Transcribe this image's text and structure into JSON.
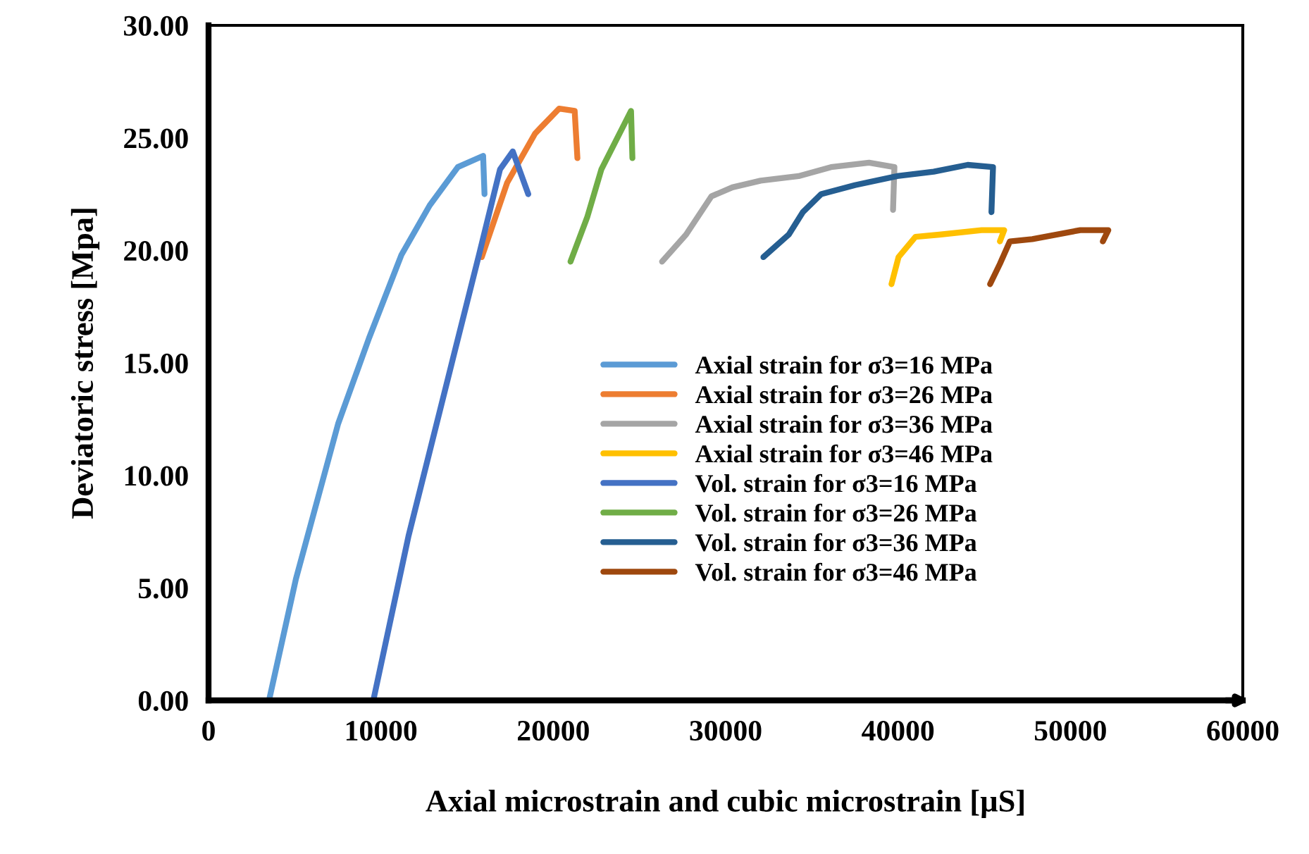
{
  "chart_data": {
    "type": "line",
    "xlabel": "Axial microstrain and cubic microstrain [µS]",
    "ylabel": "Deviatoric stress [Mpa]",
    "xlim": [
      0,
      60000
    ],
    "xticks": [
      0,
      10000,
      20000,
      30000,
      40000,
      50000,
      60000
    ],
    "ylim": [
      0,
      30
    ],
    "yticks": [
      {
        "value": 0,
        "label": "0.00"
      },
      {
        "value": 5,
        "label": "5.00"
      },
      {
        "value": 10,
        "label": "10.00"
      },
      {
        "value": 15,
        "label": "15.00"
      },
      {
        "value": 20,
        "label": "20.00"
      },
      {
        "value": 25,
        "label": "25.00"
      },
      {
        "value": 30,
        "label": "30.00"
      }
    ],
    "grid": false,
    "legend": "center",
    "marker": "none",
    "line_style": "solid",
    "series": [
      {
        "name": "Axial strain for σ3=16 MPa",
        "color": "#5b9bd5",
        "x": [
          3510,
          5070,
          7520,
          9310,
          11190,
          12830,
          14460,
          15930,
          16010
        ],
        "values": [
          0,
          5.4,
          12.3,
          16.1,
          19.8,
          22.0,
          23.7,
          24.2,
          22.5
        ]
      },
      {
        "name": "Axial strain for σ3=26 MPa",
        "color": "#ed7d31",
        "x": [
          15850,
          17320,
          18950,
          20340,
          21240,
          21400
        ],
        "values": [
          19.7,
          23.0,
          25.2,
          26.3,
          26.2,
          24.1
        ]
      },
      {
        "name": "Axial strain for σ3=36 MPa",
        "color": "#a5a5a5",
        "x": [
          26310,
          27700,
          29170,
          30390,
          32030,
          34230,
          36110,
          38320,
          39790,
          39710
        ],
        "values": [
          19.5,
          20.7,
          22.4,
          22.8,
          23.1,
          23.3,
          23.7,
          23.9,
          23.7,
          21.8
        ]
      },
      {
        "name": "Axial strain for σ3=46 MPa",
        "color": "#ffc000",
        "x": [
          39620,
          40030,
          41010,
          42400,
          44850,
          46160,
          45910
        ],
        "values": [
          18.5,
          19.7,
          20.6,
          20.7,
          20.9,
          20.9,
          20.4
        ]
      },
      {
        "name": "Vol. strain for σ3=16 MPa",
        "color": "#4472c4",
        "x": [
          9560,
          11600,
          14050,
          15690,
          16910,
          17650,
          18550
        ],
        "values": [
          0,
          7.3,
          14.8,
          19.8,
          23.6,
          24.4,
          22.5
        ]
      },
      {
        "name": "Vol. strain for σ3=26 MPa",
        "color": "#70ad47",
        "x": [
          21000,
          21980,
          22790,
          24510,
          24590
        ],
        "values": [
          19.5,
          21.5,
          23.6,
          26.2,
          24.1
        ]
      },
      {
        "name": "Vol. strain for σ3=36 MPa",
        "color": "#255e91",
        "x": [
          32190,
          33660,
          34480,
          35540,
          37500,
          39950,
          42070,
          44040,
          45510,
          45420
        ],
        "values": [
          19.7,
          20.7,
          21.7,
          22.5,
          22.9,
          23.3,
          23.5,
          23.8,
          23.7,
          21.7
        ]
      },
      {
        "name": "Vol. strain for σ3=46 MPa",
        "color": "#9e480e",
        "x": [
          45340,
          45910,
          46490,
          47790,
          50570,
          52200,
          51880
        ],
        "values": [
          18.5,
          19.4,
          20.4,
          20.5,
          20.9,
          20.9,
          20.4
        ]
      }
    ]
  }
}
